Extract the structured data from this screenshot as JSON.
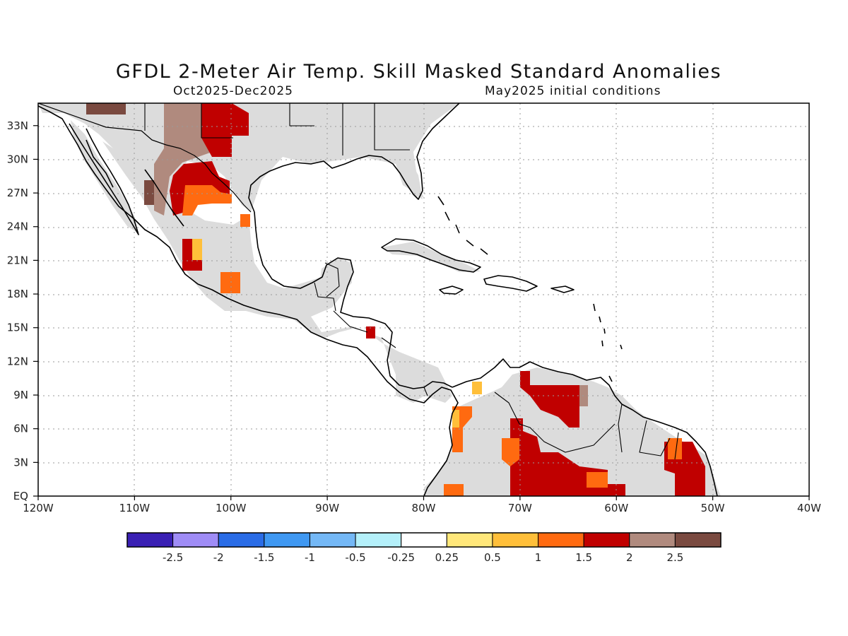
{
  "title": "GFDL 2-Meter Air Temp. Skill Masked Standard Anomalies",
  "subtitle_left": "Oct2025-Dec2025",
  "subtitle_right": "May2025 initial conditions",
  "map": {
    "lon_range": [
      -120,
      -40
    ],
    "lat_range": [
      0,
      35
    ],
    "y_tick_labels": [
      "EQ",
      "3N",
      "6N",
      "9N",
      "12N",
      "15N",
      "18N",
      "21N",
      "24N",
      "27N",
      "30N",
      "33N"
    ],
    "x_tick_labels": [
      "120W",
      "110W",
      "100W",
      "90W",
      "80W",
      "70W",
      "60W",
      "50W",
      "40W"
    ],
    "grid": true,
    "land_mask_color": "#dcdcdc",
    "border_color": "#000000"
  },
  "colorbar": {
    "tick_labels": [
      "-2.5",
      "-2",
      "-1.5",
      "-1",
      "-0.5",
      "-0.25",
      "0.25",
      "0.5",
      "1",
      "1.5",
      "2",
      "2.5"
    ],
    "colors": [
      "#3a20b4",
      "#9f8cf6",
      "#2a6ce6",
      "#3f98f2",
      "#74b8f6",
      "#b4f0fa",
      "#ffffff",
      "#ffe77a",
      "#ffbf3a",
      "#ff6a10",
      "#c00000",
      "#b08a7e",
      "#7a4a40"
    ]
  }
}
